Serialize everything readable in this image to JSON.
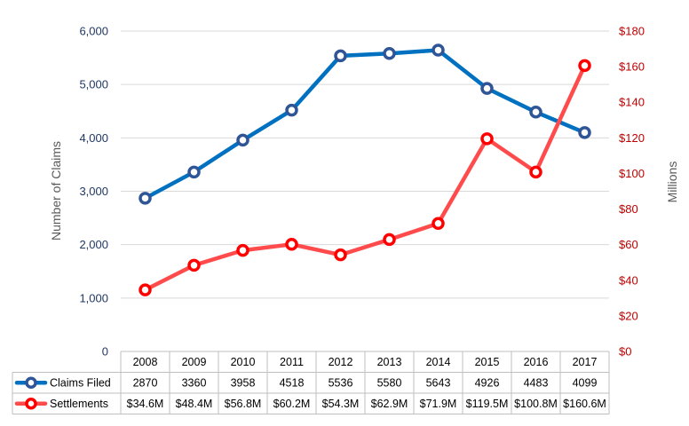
{
  "chart_data": {
    "type": "line",
    "categories": [
      "2008",
      "2009",
      "2010",
      "2011",
      "2012",
      "2013",
      "2014",
      "2015",
      "2016",
      "2017"
    ],
    "series": [
      {
        "name": "Claims Filed",
        "axis": "left",
        "color": "#0070C0",
        "marker_color": "#2F5597",
        "values": [
          2870,
          3360,
          3958,
          4518,
          5536,
          5580,
          5643,
          4926,
          4483,
          4099
        ],
        "table_labels": [
          "2870",
          "3360",
          "3958",
          "4518",
          "5536",
          "5580",
          "5643",
          "4926",
          "4483",
          "4099"
        ]
      },
      {
        "name": "Settlements",
        "axis": "right",
        "color": "#FF4B4B",
        "marker_color": "#FF0000",
        "values": [
          34.6,
          48.4,
          56.8,
          60.2,
          54.3,
          62.9,
          71.9,
          119.5,
          100.8,
          160.6
        ],
        "table_labels": [
          "$34.6M",
          "$48.4M",
          "$56.8M",
          "$60.2M",
          "$54.3M",
          "$62.9M",
          "$71.9M",
          "$119.5M",
          "$100.8M",
          "$160.6M"
        ]
      }
    ],
    "y_left": {
      "label": "Number of Claims",
      "ylim": [
        0,
        6000
      ],
      "ticks": [
        0,
        1000,
        2000,
        3000,
        4000,
        5000,
        6000
      ],
      "tick_labels": [
        "0",
        "1,000",
        "2,000",
        "3,000",
        "4,000",
        "5,000",
        "6,000"
      ],
      "color": "#1F3864"
    },
    "y_right": {
      "label": "Millions",
      "ylim": [
        0,
        180
      ],
      "ticks": [
        0,
        20,
        40,
        60,
        80,
        100,
        120,
        140,
        160,
        180
      ],
      "tick_labels": [
        "$0",
        "$20",
        "$40",
        "$60",
        "$80",
        "$100",
        "$120",
        "$140",
        "$160",
        "$180"
      ],
      "color": "#C00000"
    },
    "grid": true,
    "legend": "data table below chart"
  }
}
